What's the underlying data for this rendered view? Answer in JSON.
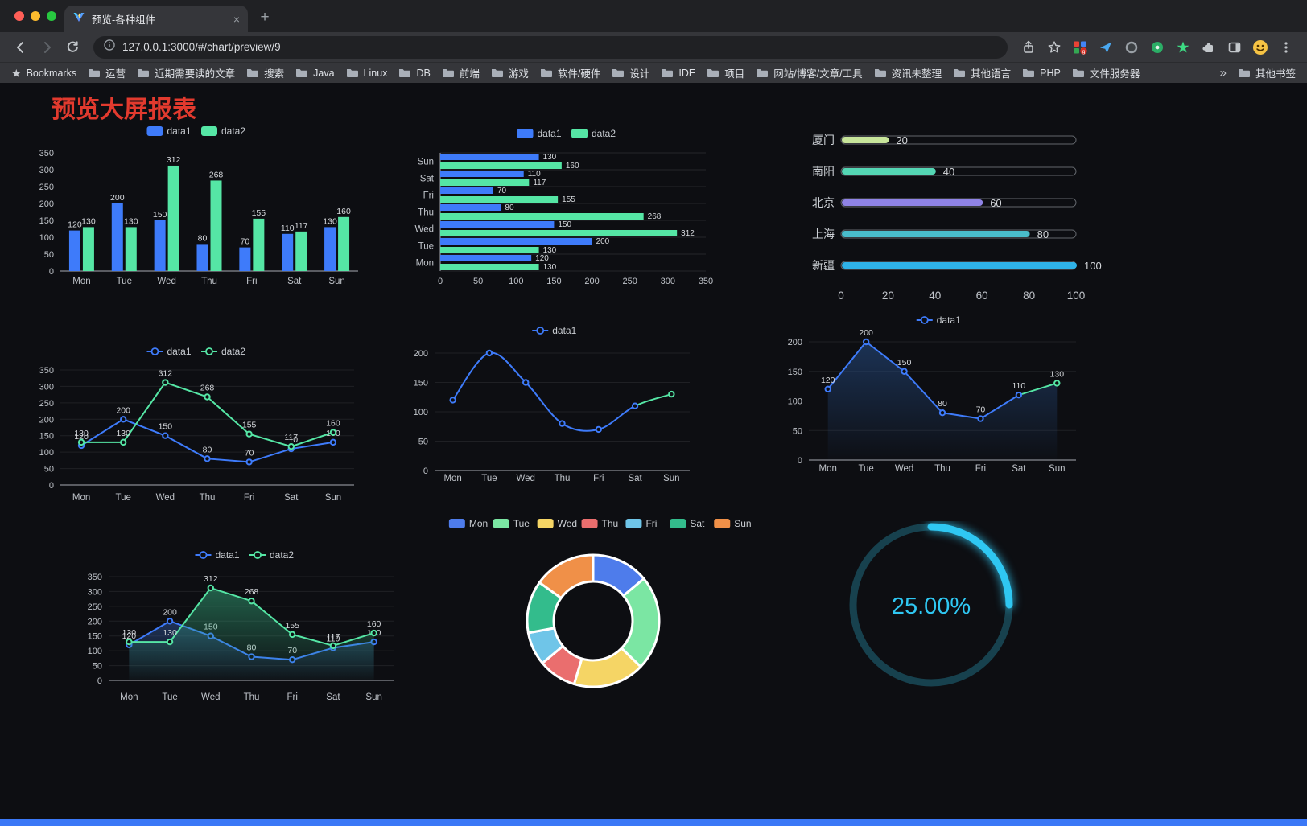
{
  "browser": {
    "tab": {
      "title": "预览-各种组件"
    },
    "address": {
      "url": "127.0.0.1:3000/#/chart/preview/9"
    },
    "bookmarks_bar": {
      "bookmarks_label": "Bookmarks",
      "folders": [
        "运营",
        "近期需要读的文章",
        "搜索",
        "Java",
        "Linux",
        "DB",
        "前端",
        "游戏",
        "软件/硬件",
        "设计",
        "IDE",
        "项目",
        "网站/博客/文章/工具",
        "资讯未整理",
        "其他语言",
        "PHP",
        "文件服务器"
      ],
      "overflow": "»",
      "other_bookmarks": "其他书签"
    },
    "icons": {
      "close_tab": "×",
      "new_tab": "+",
      "bookmarks_star": "★"
    }
  },
  "page": {
    "title": "预览大屏报表"
  },
  "chart_data": [
    {
      "id": "bar-grouped",
      "type": "bar",
      "categories": [
        "Mon",
        "Tue",
        "Wed",
        "Thu",
        "Fri",
        "Sat",
        "Sun"
      ],
      "series": [
        {
          "name": "data1",
          "color": "#3E7BFA",
          "values": [
            120,
            200,
            150,
            80,
            70,
            110,
            130
          ]
        },
        {
          "name": "data2",
          "color": "#55E6A5",
          "values": [
            130,
            130,
            312,
            268,
            155,
            117,
            160
          ]
        }
      ],
      "ylim": [
        0,
        350
      ],
      "yticks": [
        0,
        50,
        100,
        150,
        200,
        250,
        300,
        350
      ]
    },
    {
      "id": "bar-horizontal",
      "type": "bar-horizontal",
      "categories": [
        "Mon",
        "Tue",
        "Wed",
        "Thu",
        "Fri",
        "Sat",
        "Sun"
      ],
      "series": [
        {
          "name": "data1",
          "color": "#3E7BFA",
          "values": [
            120,
            200,
            150,
            80,
            70,
            110,
            130
          ]
        },
        {
          "name": "data2",
          "color": "#55E6A5",
          "values": [
            130,
            130,
            312,
            268,
            155,
            117,
            160
          ]
        }
      ],
      "xlim": [
        0,
        350
      ],
      "xticks": [
        0,
        50,
        100,
        150,
        200,
        250,
        300,
        350
      ]
    },
    {
      "id": "progress-list",
      "type": "progress",
      "categories": [
        "厦门",
        "南阳",
        "北京",
        "上海",
        "新疆"
      ],
      "values": [
        20,
        40,
        60,
        80,
        100
      ],
      "colors": [
        "#C7E59A",
        "#54D6B4",
        "#8F83E6",
        "#49BCCB",
        "#2FB2E8"
      ],
      "xlim": [
        0,
        100
      ],
      "xticks": [
        0,
        20,
        40,
        60,
        80,
        100
      ]
    },
    {
      "id": "line-two-series",
      "type": "line",
      "smooth": false,
      "labels": true,
      "categories": [
        "Mon",
        "Tue",
        "Wed",
        "Thu",
        "Fri",
        "Sat",
        "Sun"
      ],
      "series": [
        {
          "name": "data1",
          "color": "#3E7BFA",
          "values": [
            120,
            200,
            150,
            80,
            70,
            110,
            130
          ]
        },
        {
          "name": "data2",
          "color": "#55E6A5",
          "values": [
            130,
            130,
            312,
            268,
            155,
            117,
            160
          ]
        }
      ],
      "ylim": [
        0,
        350
      ],
      "yticks": [
        0,
        50,
        100,
        150,
        200,
        250,
        300,
        350
      ]
    },
    {
      "id": "line-smooth",
      "type": "line",
      "smooth": true,
      "labels": false,
      "categories": [
        "Mon",
        "Tue",
        "Wed",
        "Thu",
        "Fri",
        "Sat",
        "Sun"
      ],
      "series": [
        {
          "name": "data1",
          "color": "#3E7BFA",
          "tail_color": "#55E6A5",
          "values": [
            120,
            200,
            150,
            80,
            70,
            110,
            130
          ]
        }
      ],
      "ylim": [
        0,
        200
      ],
      "yticks": [
        0,
        50,
        100,
        150,
        200
      ]
    },
    {
      "id": "line-area",
      "type": "area",
      "smooth": false,
      "labels": true,
      "categories": [
        "Mon",
        "Tue",
        "Wed",
        "Thu",
        "Fri",
        "Sat",
        "Sun"
      ],
      "series": [
        {
          "name": "data1",
          "color": "#3E7BFA",
          "tail_color": "#55E6A5",
          "area_color": "#2A5798",
          "values": [
            120,
            200,
            150,
            80,
            70,
            110,
            130
          ]
        }
      ],
      "ylim": [
        0,
        200
      ],
      "yticks": [
        0,
        50,
        100,
        150,
        200
      ]
    },
    {
      "id": "line-two-area",
      "type": "area",
      "smooth": false,
      "labels": true,
      "categories": [
        "Mon",
        "Tue",
        "Wed",
        "Thu",
        "Fri",
        "Sat",
        "Sun"
      ],
      "series": [
        {
          "name": "data1",
          "color": "#3E7BFA",
          "area_color": "#31589E",
          "values": [
            120,
            200,
            150,
            80,
            70,
            110,
            130
          ]
        },
        {
          "name": "data2",
          "color": "#55E6A5",
          "area_color": "#36B080",
          "values": [
            130,
            130,
            312,
            268,
            155,
            117,
            160
          ]
        }
      ],
      "ylim": [
        0,
        350
      ],
      "yticks": [
        0,
        50,
        100,
        150,
        200,
        250,
        300,
        350
      ]
    },
    {
      "id": "donut",
      "type": "pie",
      "categories": [
        "Mon",
        "Tue",
        "Wed",
        "Thu",
        "Fri",
        "Sat",
        "Sun"
      ],
      "values": [
        120,
        200,
        150,
        80,
        70,
        110,
        130
      ],
      "colors": [
        "#4E7CEB",
        "#7BE6A3",
        "#F5D565",
        "#EA6E6E",
        "#6FC5E8",
        "#33BC8C",
        "#F09048"
      ]
    },
    {
      "id": "gauge",
      "type": "gauge",
      "value": 25,
      "label": "25.00%",
      "color": "#2FC7F2",
      "track_color": "#17414E"
    }
  ]
}
